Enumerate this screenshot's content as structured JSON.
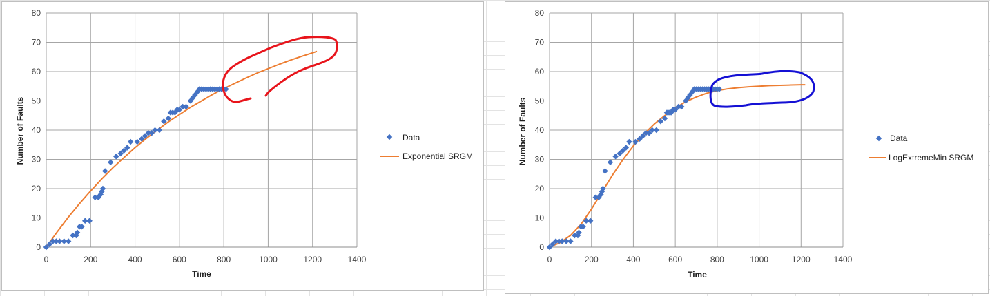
{
  "chart_data": [
    {
      "type": "scatter",
      "xlabel": "Time",
      "ylabel": "Number of Faults",
      "xlim": [
        0,
        1400
      ],
      "ylim": [
        0,
        80
      ],
      "x_ticks": [
        "0",
        "200",
        "400",
        "600",
        "800",
        "1000",
        "1200",
        "1400"
      ],
      "y_ticks": [
        "0",
        "10",
        "20",
        "30",
        "40",
        "50",
        "60",
        "70",
        "80"
      ],
      "grid": true,
      "legend_position": "right",
      "series": [
        {
          "name": "Data",
          "kind": "markers",
          "color": "#4472c4",
          "x": [
            0,
            15,
            30,
            45,
            60,
            80,
            100,
            120,
            135,
            140,
            150,
            160,
            175,
            195,
            220,
            235,
            245,
            250,
            255,
            265,
            290,
            315,
            335,
            350,
            365,
            380,
            410,
            430,
            445,
            460,
            475,
            490,
            510,
            530,
            550,
            560,
            570,
            580,
            590,
            600,
            615,
            630,
            650,
            660,
            670,
            680,
            690,
            700,
            710,
            720,
            730,
            740,
            750,
            760,
            770,
            780,
            790,
            800,
            810
          ],
          "y": [
            0,
            1,
            2,
            2,
            2,
            2,
            2,
            4,
            4,
            5,
            7,
            7,
            9,
            9,
            17,
            17,
            18,
            19,
            20,
            26,
            29,
            31,
            32,
            33,
            34,
            36,
            36,
            37,
            38,
            39,
            39,
            40,
            40,
            43,
            44,
            46,
            46,
            46,
            47,
            47,
            48,
            48,
            50,
            51,
            52,
            53,
            54,
            54,
            54,
            54,
            54,
            54,
            54,
            54,
            54,
            54,
            54,
            54,
            54
          ]
        },
        {
          "name": "Exponential SRGM",
          "kind": "line",
          "color": "#ed7d31",
          "x": [
            0,
            50,
            100,
            150,
            200,
            250,
            300,
            350,
            400,
            450,
            500,
            550,
            600,
            650,
            700,
            750,
            800,
            850,
            900,
            950,
            1000,
            1050,
            1100,
            1150,
            1200,
            1220
          ],
          "y": [
            0,
            5.3,
            10.3,
            14.9,
            19.2,
            23.3,
            27.1,
            30.6,
            34,
            37.1,
            40,
            42.8,
            45.3,
            47.8,
            50,
            52.2,
            54.2,
            56,
            57.8,
            59.5,
            61,
            62.5,
            63.9,
            65.2,
            66.4,
            66.9
          ]
        }
      ],
      "annotation": {
        "shape": "freehand-circle",
        "color": "#e8141b"
      }
    },
    {
      "type": "scatter",
      "xlabel": "Time",
      "ylabel": "Number of Faults",
      "xlim": [
        0,
        1400
      ],
      "ylim": [
        0,
        80
      ],
      "x_ticks": [
        "0",
        "200",
        "400",
        "600",
        "800",
        "1000",
        "1200",
        "1400"
      ],
      "y_ticks": [
        "0",
        "10",
        "20",
        "30",
        "40",
        "50",
        "60",
        "70",
        "80"
      ],
      "grid": true,
      "legend_position": "right",
      "series": [
        {
          "name": "Data",
          "kind": "markers",
          "color": "#4472c4",
          "x": [
            0,
            15,
            30,
            45,
            60,
            80,
            100,
            120,
            135,
            140,
            150,
            160,
            175,
            195,
            220,
            235,
            245,
            250,
            255,
            265,
            290,
            315,
            335,
            350,
            365,
            380,
            410,
            430,
            445,
            460,
            475,
            490,
            510,
            530,
            550,
            560,
            570,
            580,
            590,
            600,
            615,
            630,
            650,
            660,
            670,
            680,
            690,
            700,
            710,
            720,
            730,
            740,
            750,
            760,
            770,
            780,
            790,
            800,
            810
          ],
          "y": [
            0,
            1,
            2,
            2,
            2,
            2,
            2,
            4,
            4,
            5,
            7,
            7,
            9,
            9,
            17,
            17,
            18,
            19,
            20,
            26,
            29,
            31,
            32,
            33,
            34,
            36,
            36,
            37,
            38,
            39,
            39,
            40,
            40,
            43,
            44,
            46,
            46,
            46,
            47,
            47,
            48,
            48,
            50,
            51,
            52,
            53,
            54,
            54,
            54,
            54,
            54,
            54,
            54,
            54,
            54,
            54,
            54,
            54,
            54
          ]
        },
        {
          "name": "LogExtremeMin SRGM",
          "kind": "line",
          "color": "#ed7d31",
          "x": [
            0,
            50,
            100,
            150,
            200,
            250,
            300,
            350,
            400,
            450,
            500,
            550,
            600,
            650,
            700,
            750,
            800,
            850,
            900,
            950,
            1000,
            1050,
            1100,
            1150,
            1200,
            1220
          ],
          "y": [
            0,
            1.5,
            4,
            7.8,
            13,
            18.8,
            24.6,
            29.9,
            34.6,
            38.6,
            42.1,
            45,
            47.6,
            49.7,
            51.3,
            52.6,
            53.5,
            54.1,
            54.5,
            54.8,
            55,
            55.2,
            55.3,
            55.4,
            55.5,
            55.5
          ]
        }
      ],
      "annotation": {
        "shape": "freehand-circle",
        "color": "#1410d4"
      }
    }
  ]
}
